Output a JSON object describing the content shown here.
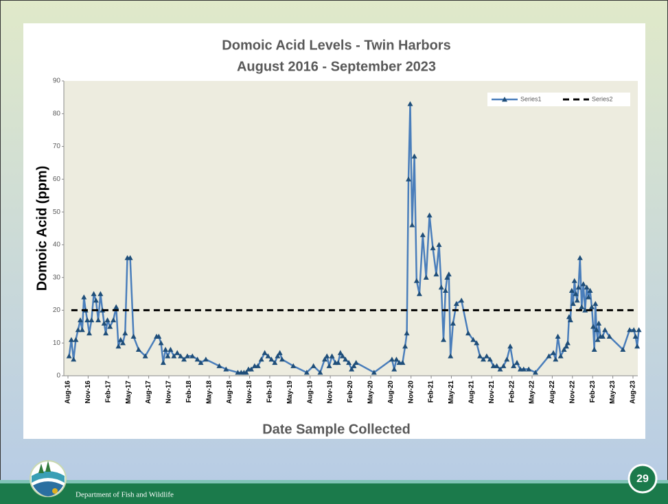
{
  "chart_data": {
    "type": "line",
    "title": "Domoic Acid Levels - Twin Harbors",
    "subtitle": "August 2016 - September 2023",
    "y_label": "Domoic Acid (ppm)",
    "x_label": "Date Sample Collected",
    "ylim": [
      0,
      90
    ],
    "yticks": [
      0,
      10,
      20,
      30,
      40,
      50,
      60,
      70,
      80,
      90
    ],
    "xlim": [
      "Aug-16",
      "Aug-23"
    ],
    "xticks": [
      "Aug-16",
      "Nov-16",
      "Feb-17",
      "May-17",
      "Aug-17",
      "Nov-17",
      "Feb-18",
      "May-18",
      "Aug-18",
      "Nov-18",
      "Feb-19",
      "May-19",
      "Aug-19",
      "Nov-19",
      "Feb-20",
      "May-20",
      "Aug-20",
      "Nov-20",
      "Feb-21",
      "May-21",
      "Aug-21",
      "Nov-21",
      "Feb-22",
      "May-22",
      "Aug-22",
      "Nov-22",
      "Feb-23",
      "May-23",
      "Aug-23"
    ],
    "legend": "top-right",
    "series": [
      {
        "name": "Series1",
        "color": "#4a7ebb",
        "marker_color": "#1f4e79",
        "x": [
          "Aug-16",
          "Aug-16",
          "Aug-16",
          "Sep-16",
          "Sep-16",
          "Sep-16",
          "Oct-16",
          "Oct-16",
          "Oct-16",
          "Oct-16",
          "Nov-16",
          "Nov-16",
          "Nov-16",
          "Dec-16",
          "Dec-16",
          "Dec-16",
          "Jan-17",
          "Jan-17",
          "Jan-17",
          "Jan-17",
          "Feb-17",
          "Feb-17",
          "Mar-17",
          "Mar-17",
          "Mar-17",
          "Apr-17",
          "Apr-17",
          "Apr-17",
          "May-17",
          "May-17",
          "Jun-17",
          "Jul-17",
          "Sep-17",
          "Sep-17",
          "Sep-17",
          "Oct-17",
          "Oct-17",
          "Oct-17",
          "Nov-17",
          "Nov-17",
          "Dec-17",
          "Dec-17",
          "Jan-18",
          "Jan-18",
          "Feb-18",
          "Mar-18",
          "Mar-18",
          "Apr-18",
          "Jun-18",
          "Jul-18",
          "Sep-18",
          "Sep-18",
          "Oct-18",
          "Oct-18",
          "Oct-18",
          "Nov-18",
          "Nov-18",
          "Dec-18",
          "Dec-18",
          "Jan-19",
          "Jan-19",
          "Feb-19",
          "Feb-19",
          "Mar-19",
          "Mar-19",
          "Mar-19",
          "May-19",
          "Jul-19",
          "Aug-19",
          "Sep-19",
          "Oct-19",
          "Oct-19",
          "Oct-19",
          "Nov-19",
          "Nov-19",
          "Dec-19",
          "Dec-19",
          "Dec-19",
          "Jan-20",
          "Jan-20",
          "Feb-20",
          "Feb-20",
          "Feb-20",
          "May-20",
          "Aug-20",
          "Aug-20",
          "Aug-20",
          "Sep-20",
          "Sep-20",
          "Oct-20",
          "Oct-20",
          "Oct-20",
          "Oct-20",
          "Nov-20",
          "Nov-20",
          "Nov-20",
          "Dec-20",
          "Dec-20",
          "Jan-21",
          "Jan-21",
          "Feb-21",
          "Feb-21",
          "Mar-21",
          "Mar-21",
          "Mar-21",
          "Apr-21",
          "Apr-21",
          "Apr-21",
          "Apr-21",
          "May-21",
          "May-21",
          "Jun-21",
          "Jul-21",
          "Aug-21",
          "Aug-21",
          "Sep-21",
          "Sep-21",
          "Oct-21",
          "Oct-21",
          "Nov-21",
          "Nov-21",
          "Dec-21",
          "Dec-21",
          "Jan-22",
          "Jan-22",
          "Feb-22",
          "Feb-22",
          "Mar-22",
          "Mar-22",
          "Apr-22",
          "May-22",
          "Jul-22",
          "Aug-22",
          "Aug-22",
          "Aug-22",
          "Sep-22",
          "Sep-22",
          "Oct-22",
          "Oct-22",
          "Oct-22",
          "Oct-22",
          "Oct-22",
          "Nov-22",
          "Nov-22",
          "Nov-22",
          "Nov-22",
          "Nov-22",
          "Dec-22",
          "Dec-22",
          "Dec-22",
          "Dec-22",
          "Jan-23",
          "Jan-23",
          "Jan-23",
          "Jan-23",
          "Feb-23",
          "Feb-23",
          "Feb-23",
          "Feb-23",
          "Feb-23",
          "Feb-23",
          "Mar-23",
          "Mar-23",
          "Mar-23",
          "Apr-23",
          "Jun-23",
          "Jul-23",
          "Aug-23",
          "Aug-23",
          "Aug-23",
          "Aug-23"
        ],
        "values": [
          6,
          11,
          5,
          11,
          14,
          17,
          14,
          24,
          20,
          17,
          13,
          17,
          25,
          23,
          17,
          25,
          20,
          16,
          13,
          17,
          15,
          17,
          21,
          9,
          11,
          10,
          13,
          36,
          36,
          12,
          8,
          6,
          12,
          12,
          10,
          4,
          8,
          6,
          8,
          6,
          7,
          6,
          5,
          6,
          6,
          5,
          4,
          5,
          3,
          2,
          1,
          1,
          1,
          1,
          2,
          2,
          3,
          3,
          5,
          7,
          6,
          5,
          4,
          6,
          7,
          5,
          3,
          1,
          3,
          1,
          5,
          6,
          3,
          6,
          4,
          4,
          7,
          6,
          5,
          4,
          2,
          3,
          4,
          1,
          5,
          2,
          5,
          4,
          4,
          9,
          13,
          60,
          83,
          46,
          67,
          29,
          25,
          43,
          30,
          49,
          39,
          31,
          40,
          27,
          11,
          26,
          30,
          31,
          6,
          16,
          22,
          23,
          13,
          11,
          10,
          6,
          5,
          6,
          5,
          3,
          3,
          2,
          3,
          5,
          9,
          3,
          4,
          2,
          2,
          2,
          1,
          6,
          7,
          5,
          12,
          6,
          8,
          9,
          10,
          18,
          17,
          26,
          22,
          29,
          25,
          23,
          27,
          36,
          21,
          28,
          20,
          27,
          24,
          26,
          21,
          15,
          8,
          22,
          14,
          11,
          16,
          12,
          12,
          14,
          12,
          8,
          14,
          14,
          12,
          9,
          14
        ]
      },
      {
        "name": "Series2",
        "color": "#000000",
        "dashed": true,
        "x": [
          "Aug-16",
          "Aug-23"
        ],
        "values": [
          20,
          20
        ]
      }
    ]
  },
  "footer": {
    "text": "Department of Fish and Wildlife",
    "page": 29
  }
}
